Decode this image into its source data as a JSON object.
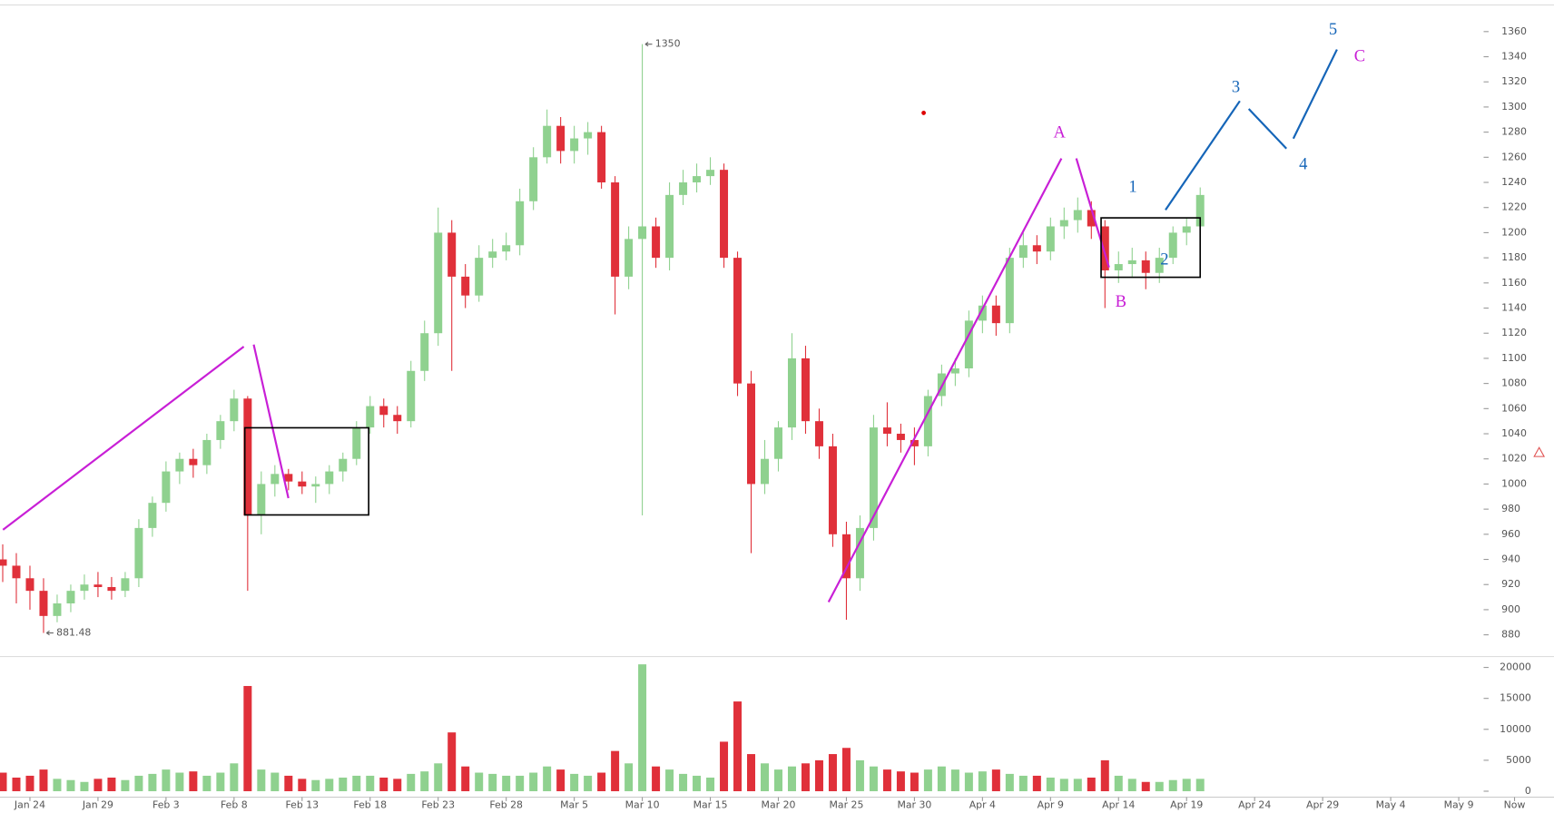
{
  "chart_data": {
    "type": "candlestick",
    "x": [
      -2,
      -1,
      0,
      1,
      2,
      3,
      4,
      5,
      6,
      7,
      8,
      9,
      10,
      11,
      12,
      13,
      14,
      15,
      16,
      17,
      18,
      19,
      20,
      21,
      22,
      23,
      24,
      25,
      26,
      27,
      28,
      29,
      30,
      31,
      32,
      33,
      34,
      35,
      36,
      37,
      38,
      39,
      40,
      41,
      42,
      43,
      44,
      45,
      46,
      47,
      48,
      49,
      50,
      51,
      52,
      53,
      54,
      55,
      56,
      57,
      58,
      59,
      60,
      61,
      62,
      63,
      64,
      65,
      66,
      67,
      68,
      69,
      70,
      71,
      72,
      73,
      74,
      75,
      76,
      77,
      78,
      79,
      80,
      81,
      82,
      83,
      84,
      85,
      86
    ],
    "open": [
      940,
      935,
      925,
      915,
      895,
      905,
      915,
      920,
      918,
      915,
      925,
      965,
      985,
      1010,
      1020,
      1015,
      1035,
      1050,
      1068,
      975,
      1000,
      1008,
      1002,
      998,
      1000,
      1010,
      1020,
      1045,
      1062,
      1055,
      1050,
      1090,
      1120,
      1200,
      1165,
      1150,
      1180,
      1185,
      1190,
      1225,
      1260,
      1285,
      1265,
      1275,
      1280,
      1240,
      1165,
      1195,
      1205,
      1180,
      1230,
      1240,
      1245,
      1250,
      1180,
      1080,
      1000,
      1020,
      1045,
      1100,
      1050,
      1030,
      960,
      925,
      965,
      1045,
      1040,
      1035,
      1030,
      1070,
      1088,
      1092,
      1130,
      1142,
      1128,
      1180,
      1190,
      1185,
      1205,
      1210,
      1218,
      1205,
      1170,
      1175,
      1178,
      1168,
      1180,
      1200,
      1205
    ],
    "high": [
      952,
      945,
      935,
      925,
      912,
      920,
      928,
      930,
      926,
      930,
      972,
      990,
      1018,
      1025,
      1028,
      1040,
      1055,
      1075,
      1070,
      1010,
      1015,
      1012,
      1010,
      1006,
      1015,
      1025,
      1050,
      1070,
      1068,
      1062,
      1098,
      1130,
      1220,
      1210,
      1175,
      1190,
      1195,
      1200,
      1235,
      1268,
      1298,
      1292,
      1285,
      1288,
      1285,
      1245,
      1205,
      1350,
      1212,
      1240,
      1250,
      1255,
      1260,
      1255,
      1185,
      1090,
      1035,
      1050,
      1120,
      1110,
      1060,
      1040,
      970,
      975,
      1055,
      1065,
      1048,
      1045,
      1075,
      1095,
      1100,
      1138,
      1150,
      1150,
      1188,
      1200,
      1198,
      1212,
      1220,
      1228,
      1225,
      1210,
      1185,
      1188,
      1185,
      1188,
      1205,
      1212,
      1236
    ],
    "low": [
      922,
      905,
      900,
      881.48,
      890,
      898,
      908,
      910,
      908,
      910,
      918,
      958,
      978,
      1000,
      1005,
      1008,
      1028,
      1042,
      915,
      960,
      990,
      995,
      992,
      985,
      992,
      1002,
      1015,
      1040,
      1045,
      1040,
      1045,
      1082,
      1110,
      1090,
      1140,
      1145,
      1172,
      1178,
      1182,
      1218,
      1255,
      1255,
      1255,
      1262,
      1235,
      1135,
      1155,
      975,
      1172,
      1170,
      1222,
      1232,
      1238,
      1172,
      1070,
      945,
      992,
      1010,
      1035,
      1040,
      1020,
      950,
      892,
      915,
      955,
      1030,
      1025,
      1015,
      1022,
      1062,
      1078,
      1085,
      1120,
      1118,
      1120,
      1172,
      1175,
      1178,
      1195,
      1200,
      1195,
      1140,
      1160,
      1165,
      1155,
      1160,
      1175,
      1190,
      1198
    ],
    "close": [
      935,
      925,
      915,
      895,
      905,
      915,
      920,
      918,
      915,
      925,
      965,
      985,
      1010,
      1020,
      1015,
      1035,
      1050,
      1068,
      975,
      1000,
      1008,
      1002,
      998,
      1000,
      1010,
      1020,
      1045,
      1062,
      1055,
      1050,
      1090,
      1120,
      1200,
      1165,
      1150,
      1180,
      1185,
      1190,
      1225,
      1260,
      1285,
      1265,
      1275,
      1280,
      1240,
      1165,
      1195,
      1205,
      1180,
      1230,
      1240,
      1245,
      1250,
      1180,
      1080,
      1000,
      1020,
      1045,
      1100,
      1050,
      1030,
      960,
      925,
      965,
      1045,
      1040,
      1035,
      1030,
      1070,
      1088,
      1092,
      1130,
      1142,
      1128,
      1180,
      1190,
      1185,
      1205,
      1210,
      1218,
      1205,
      1170,
      1175,
      1178,
      1168,
      1180,
      1200,
      1205,
      1230
    ],
    "volume": [
      3000,
      2200,
      2500,
      3500,
      2000,
      1800,
      1500,
      2000,
      2200,
      1800,
      2500,
      2800,
      3500,
      3000,
      3200,
      2500,
      3000,
      4500,
      17000,
      3500,
      3000,
      2500,
      2000,
      1800,
      2000,
      2200,
      2500,
      2500,
      2200,
      2000,
      2800,
      3200,
      4500,
      9500,
      4000,
      3000,
      2800,
      2500,
      2500,
      3000,
      4000,
      3500,
      2800,
      2500,
      3000,
      6500,
      4500,
      20500,
      4000,
      3500,
      2800,
      2500,
      2200,
      8000,
      14500,
      6000,
      4500,
      3500,
      4000,
      4500,
      5000,
      6000,
      7000,
      5000,
      4000,
      3500,
      3200,
      3000,
      3500,
      4000,
      3500,
      3000,
      3200,
      3500,
      2800,
      2500,
      2500,
      2200,
      2000,
      2000,
      2200,
      5000,
      2500,
      2000,
      1500,
      1500,
      1800,
      2000,
      2000
    ],
    "up_color": "#8fd18f",
    "down_color": "#e0303a",
    "xlim": [
      -2.2,
      112
    ],
    "xticks": [
      {
        "value": 0,
        "label": "Jan 24"
      },
      {
        "value": 5,
        "label": "Jan 29"
      },
      {
        "value": 10,
        "label": "Feb 3"
      },
      {
        "value": 15,
        "label": "Feb 8"
      },
      {
        "value": 20,
        "label": "Feb 13"
      },
      {
        "value": 25,
        "label": "Feb 18"
      },
      {
        "value": 30,
        "label": "Feb 23"
      },
      {
        "value": 35,
        "label": "Feb 28"
      },
      {
        "value": 40,
        "label": "Mar 5"
      },
      {
        "value": 45,
        "label": "Mar 10"
      },
      {
        "value": 50,
        "label": "Mar 15"
      },
      {
        "value": 55,
        "label": "Mar 20"
      },
      {
        "value": 60,
        "label": "Mar 25"
      },
      {
        "value": 65,
        "label": "Mar 30"
      },
      {
        "value": 70,
        "label": "Apr 4"
      },
      {
        "value": 75,
        "label": "Apr 9"
      },
      {
        "value": 80,
        "label": "Apr 14"
      },
      {
        "value": 85,
        "label": "Apr 19"
      },
      {
        "value": 90,
        "label": "Apr 24"
      },
      {
        "value": 95,
        "label": "Apr 29"
      },
      {
        "value": 100,
        "label": "May 4"
      },
      {
        "value": 105,
        "label": "May 9"
      },
      {
        "value": 109.1,
        "label": "Now"
      }
    ],
    "ylim": [
      863.5,
      1381.2
    ],
    "yticks": [
      880,
      900,
      920,
      940,
      960,
      980,
      1000,
      1020,
      1040,
      1060,
      1080,
      1100,
      1120,
      1140,
      1160,
      1180,
      1200,
      1220,
      1240,
      1260,
      1280,
      1300,
      1320,
      1340,
      1360
    ],
    "volume_ylim": [
      -960,
      21600
    ],
    "volume_yticks": [
      0,
      5000,
      10000,
      15000,
      20000
    ],
    "max_label": "1350",
    "min_label": "881.48",
    "annotations": [
      {
        "text": "A",
        "color": "#c81fd6"
      },
      {
        "text": "B",
        "color": "#c81fd6"
      },
      {
        "text": "C",
        "color": "#c81fd6"
      },
      {
        "text": "1",
        "color": "#1565b8"
      },
      {
        "text": "2",
        "color": "#1565b8"
      },
      {
        "text": "3",
        "color": "#1565b8"
      },
      {
        "text": "4",
        "color": "#1565b8"
      },
      {
        "text": "5",
        "color": "#1565b8"
      }
    ]
  }
}
